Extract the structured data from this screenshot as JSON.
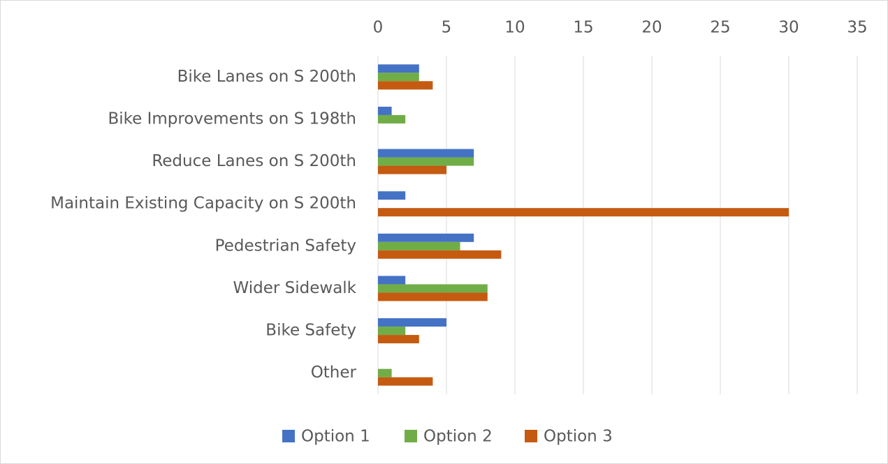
{
  "chart_data": {
    "type": "bar",
    "orientation": "horizontal",
    "categories": [
      "Bike Lanes on S 200th",
      "Bike Improvements on S 198th",
      "Reduce Lanes on S 200th",
      "Maintain Existing Capacity on S 200th",
      "Pedestrian Safety",
      "Wider Sidewalk",
      "Bike Safety",
      "Other"
    ],
    "series": [
      {
        "name": "Option 1",
        "color": "#4472c4",
        "values": [
          3,
          1,
          7,
          2,
          7,
          2,
          5,
          0
        ]
      },
      {
        "name": "Option 2",
        "color": "#70ad47",
        "values": [
          3,
          2,
          7,
          0,
          6,
          8,
          2,
          1
        ]
      },
      {
        "name": "Option 3",
        "color": "#c55a11",
        "values": [
          4,
          0,
          5,
          30,
          9,
          8,
          3,
          4
        ]
      }
    ],
    "xlim": [
      0,
      35
    ],
    "xticks": [
      0,
      5,
      10,
      15,
      20,
      25,
      30,
      35
    ],
    "grid": true,
    "legend": "bottom"
  }
}
